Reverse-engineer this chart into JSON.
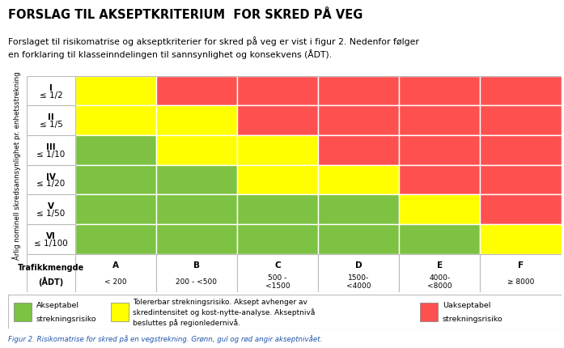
{
  "title": "FORSLAG TIL AKSEPTKRITERIUM  FOR SKRED PÅ VEG",
  "intro_text": "Forslaget til risikomatrise og akseptkriterier for skred på veg er vist i figur 2. Nedenfor følger\nen forklaring til klasseinndelingen til sannsynlighet og konsekvens (ÅDT).",
  "row_labels_line1": [
    "I",
    "II",
    "III",
    "IV",
    "V",
    "VI"
  ],
  "row_labels_line2": [
    "≤ 1/2",
    "≤ 1/5",
    "≤ 1/10",
    "≤ 1/20",
    "≤ 1/50",
    "≤ 1/100"
  ],
  "col_labels_top": [
    "A",
    "B",
    "C",
    "D",
    "E",
    "F"
  ],
  "col_labels_bot": [
    "< 200",
    "200 - <500",
    "500 -\n<1500",
    "1500-\n<4000",
    "4000-\n<8000",
    "≥ 8000"
  ],
  "col_header_label1": "Trafikkmengde",
  "col_header_label2": "(ÅDT)",
  "y_axis_label": "Årlig nominell skredsannsynlighet pr. enhetsstrekning",
  "colors": {
    "green": "#7DC242",
    "yellow": "#FFFF00",
    "red": "#FF5050"
  },
  "matrix": [
    [
      "yellow",
      "red",
      "red",
      "red",
      "red",
      "red"
    ],
    [
      "yellow",
      "yellow",
      "red",
      "red",
      "red",
      "red"
    ],
    [
      "green",
      "yellow",
      "yellow",
      "red",
      "red",
      "red"
    ],
    [
      "green",
      "green",
      "yellow",
      "yellow",
      "red",
      "red"
    ],
    [
      "green",
      "green",
      "green",
      "green",
      "yellow",
      "red"
    ],
    [
      "green",
      "green",
      "green",
      "green",
      "green",
      "yellow"
    ]
  ],
  "legend_green_label1": "Akseptabel",
  "legend_green_label2": "strekningsrisiko",
  "legend_yellow_label": "Tolererbar strekningsrisiko. Aksept avhenger av\nskredintensitet og kost-nytte-analyse. Akseptnivå\nbesluttes på regionledernivå.",
  "legend_red_label1": "Uakseptabel",
  "legend_red_label2": "strekningsrisiko",
  "caption": "Figur 2. Risikomatrise for skred på en vegstrekning. Grønn, gul og rød angir akseptnivået.",
  "background_color": "#FFFFFF",
  "border_color": "#BBBBBB",
  "caption_color": "#2255AA"
}
